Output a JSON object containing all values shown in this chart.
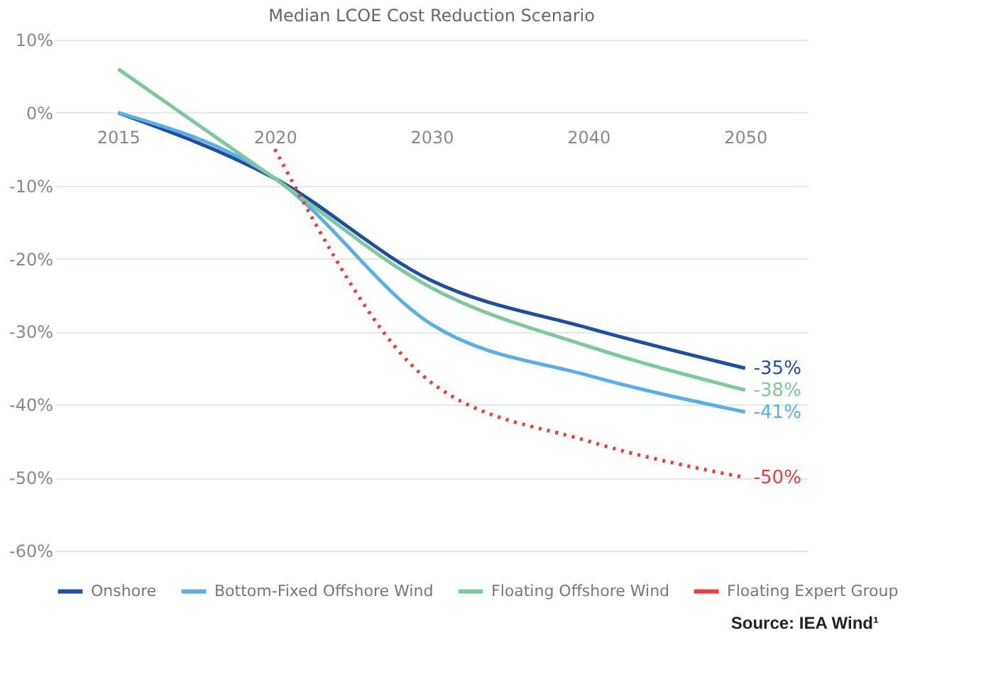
{
  "chart_data": {
    "type": "line",
    "title": "Median LCOE Cost Reduction Scenario",
    "categories": [
      "2015",
      "2020",
      "2030",
      "2040",
      "2050"
    ],
    "series": [
      {
        "name": "Onshore",
        "color": "#1f4e9c",
        "values": [
          0,
          -9,
          -23,
          -29.5,
          -35
        ],
        "value_labels": [
          null,
          null,
          null,
          null,
          "-35%"
        ]
      },
      {
        "name": "Bottom-Fixed Offshore Wind",
        "color": "#5aaee6",
        "values": [
          0,
          -9,
          -29,
          -36,
          -41
        ],
        "value_labels": [
          null,
          null,
          null,
          null,
          "-41%"
        ]
      },
      {
        "name": "Floating Offshore Wind",
        "color": "#7dc99b",
        "values": [
          6,
          -9,
          -24,
          -32,
          -38
        ],
        "value_labels": [
          null,
          null,
          null,
          null,
          "-38%"
        ]
      },
      {
        "name": "Floating Expert Group",
        "color": "#ee3b3b",
        "line_style": "dotted",
        "values": [
          null,
          -5,
          -37,
          -45,
          -50
        ],
        "value_labels": [
          null,
          null,
          null,
          null,
          "-50%"
        ]
      }
    ],
    "ylim": [
      -60,
      10
    ],
    "yticks": [
      {
        "value": 10,
        "label": "10%"
      },
      {
        "value": 0,
        "label": "0%"
      },
      {
        "value": -10,
        "label": "-10%"
      },
      {
        "value": -20,
        "label": "-20%"
      },
      {
        "value": -30,
        "label": "-30%"
      },
      {
        "value": -40,
        "label": "-40%"
      },
      {
        "value": -50,
        "label": "-50%"
      },
      {
        "value": -60,
        "label": "-60%"
      }
    ],
    "grid": "y",
    "legend": "bottom",
    "line_style": "solid",
    "marker": "none",
    "annotations": [
      "Source: IEA Wind¹"
    ]
  }
}
